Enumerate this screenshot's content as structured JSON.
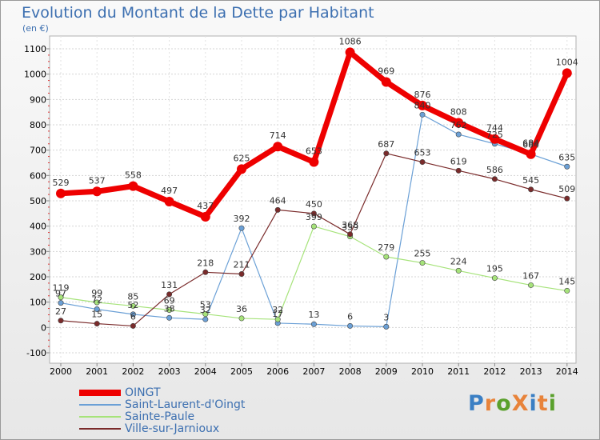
{
  "title": "Evolution du Montant de la Dette par Habitant",
  "subtitle": "(en €)",
  "logo": {
    "text": "ProXiti",
    "colors": [
      "#3a7fc4",
      "#e8833a",
      "#5aa02c",
      "#e8833a",
      "#3a7fc4",
      "#e8833a",
      "#5aa02c"
    ]
  },
  "chart_data": {
    "type": "line",
    "title": "Evolution du Montant de la Dette par Habitant",
    "ylabel": "(en €)",
    "x": [
      "2000",
      "2001",
      "2002",
      "2003",
      "2004",
      "2005",
      "2006",
      "2007",
      "2008",
      "2009",
      "2010",
      "2011",
      "2012",
      "2013",
      "2014"
    ],
    "ylim": [
      -100,
      1100
    ],
    "yticks": [
      "-100",
      "0",
      "100",
      "200",
      "300",
      "400",
      "500",
      "600",
      "700",
      "800",
      "900",
      "1000",
      "1100"
    ],
    "ytick_values": [
      -100,
      0,
      100,
      200,
      300,
      400,
      500,
      600,
      700,
      800,
      900,
      1000,
      1100
    ],
    "legend_position": "bottom-left",
    "series": [
      {
        "name": "OINGT",
        "color": "#ee0000",
        "values": [
          529,
          537,
          558,
          497,
          437,
          625,
          714,
          653,
          1086,
          969,
          876,
          808,
          744,
          684,
          1004
        ]
      },
      {
        "name": "Saint-Laurent-d'Oingt",
        "color": "#6ba0d6",
        "values": [
          97,
          72,
          52,
          38,
          32,
          392,
          17,
          13,
          6,
          3,
          840,
          762,
          725,
          684,
          635
        ]
      },
      {
        "name": "Sainte-Paule",
        "color": "#a6e37a",
        "values": [
          119,
          99,
          85,
          69,
          53,
          36,
          32,
          399,
          359,
          279,
          255,
          224,
          195,
          167,
          145
        ]
      },
      {
        "name": "Ville-sur-Jarnioux",
        "color": "#7a2b2b",
        "values": [
          27,
          15,
          6,
          131,
          218,
          211,
          464,
          450,
          368,
          687,
          653,
          619,
          586,
          545,
          509
        ]
      }
    ]
  }
}
